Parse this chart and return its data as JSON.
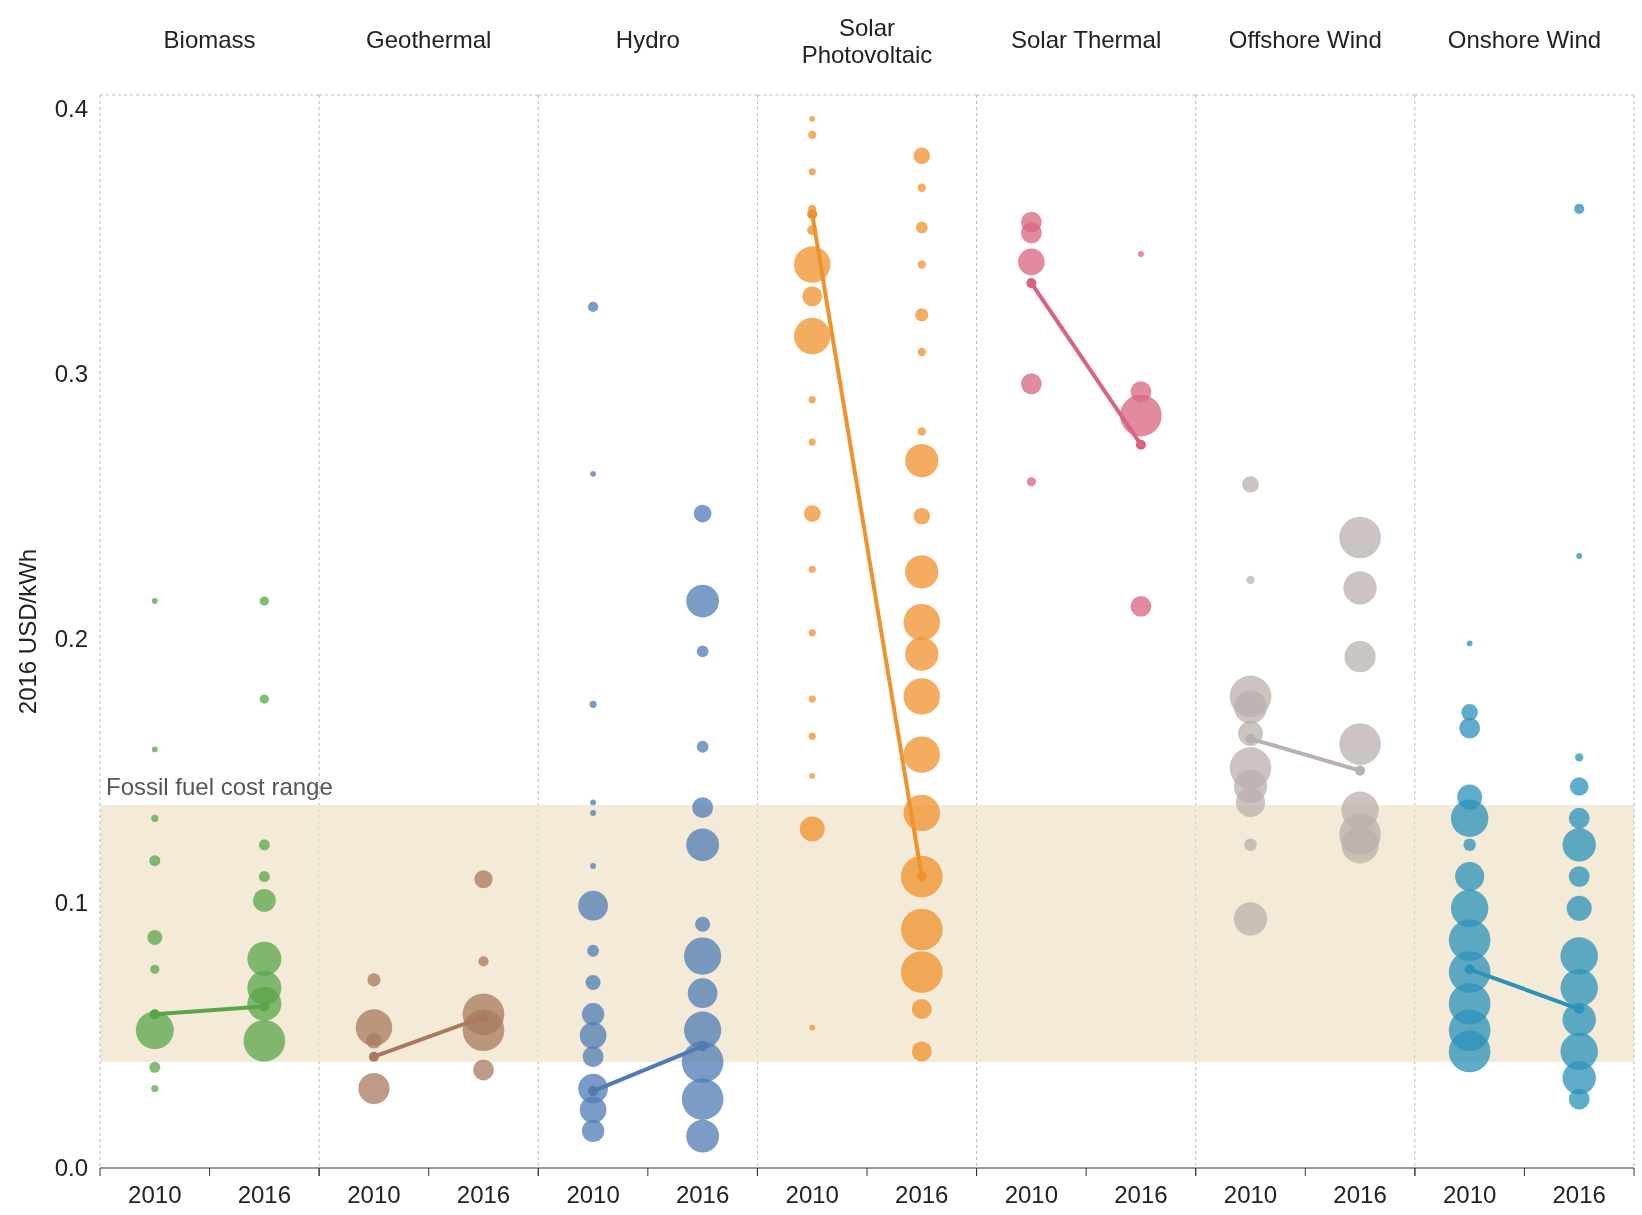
{
  "chart_data": [
    {
      "type": "bubble",
      "title": "Biomass",
      "ylabel": "2016 USD/kWh",
      "xlim": [
        "2007",
        "2019"
      ],
      "xticks": [
        "2010",
        "2016"
      ],
      "ylim": [
        0,
        0.405
      ],
      "yticks": [
        {
          "value": 0,
          "label": "0.0"
        },
        {
          "value": 0.1,
          "label": "0.1"
        },
        {
          "value": 0.2,
          "label": "0.2"
        },
        {
          "value": 0.3,
          "label": "0.3"
        },
        {
          "value": 0.4,
          "label": "0.4"
        }
      ],
      "marker": "circle",
      "bands": [
        {
          "axis": "y",
          "from": 0.04,
          "to": 0.137,
          "label": "Fossil fuel cost range",
          "color": "#f3ead8"
        }
      ],
      "series": [
        {
          "type": "bubble",
          "color": "#5aa54a",
          "x": [
            "2010",
            "2010",
            "2010",
            "2010",
            "2010",
            "2010",
            "2010",
            "2010",
            "2010",
            "2016",
            "2016",
            "2016",
            "2016",
            "2016",
            "2016",
            "2016",
            "2016",
            "2016"
          ],
          "values": [
            0.214,
            0.158,
            0.132,
            0.116,
            0.087,
            0.075,
            0.052,
            0.038,
            0.03,
            0.214,
            0.177,
            0.122,
            0.11,
            0.101,
            0.079,
            0.068,
            0.062,
            0.048
          ],
          "sizes": [
            0.02,
            0.02,
            0.03,
            0.07,
            0.13,
            0.05,
            0.83,
            0.07,
            0.03,
            0.05,
            0.05,
            0.07,
            0.07,
            0.3,
            0.67,
            0.67,
            0.67,
            1
          ]
        },
        {
          "type": "line",
          "color": "#5aa54a",
          "x": [
            "2010",
            "2016"
          ],
          "values": [
            0.058,
            0.061
          ]
        }
      ]
    },
    {
      "type": "bubble",
      "title": "Geothermal",
      "xlim": [
        "2007",
        "2019"
      ],
      "xticks": [
        "2010",
        "2016"
      ],
      "ylim": [
        0,
        0.405
      ],
      "tick_labels": "x",
      "marker": "circle",
      "bands": [
        {
          "axis": "y",
          "from": 0.04,
          "to": 0.137,
          "color": "#f3ead8"
        }
      ],
      "series": [
        {
          "type": "bubble",
          "color": "#a87a5f",
          "x": [
            "2010",
            "2010",
            "2010",
            "2010",
            "2016",
            "2016",
            "2016",
            "2016",
            "2016"
          ],
          "values": [
            0.071,
            0.053,
            0.048,
            0.03,
            0.109,
            0.078,
            0.058,
            0.052,
            0.037
          ],
          "sizes": [
            0.1,
            0.77,
            0.14,
            0.56,
            0.19,
            0.06,
            1,
            1,
            0.25
          ]
        },
        {
          "type": "line",
          "color": "#a87a5f",
          "x": [
            "2010",
            "2016"
          ],
          "values": [
            0.042,
            0.057
          ]
        }
      ]
    },
    {
      "type": "bubble",
      "title": "Hydro",
      "xlim": [
        "2007",
        "2019"
      ],
      "xticks": [
        "2010",
        "2016"
      ],
      "ylim": [
        0,
        0.405
      ],
      "tick_labels": "x",
      "marker": "circle",
      "bands": [
        {
          "axis": "y",
          "from": 0.04,
          "to": 0.137,
          "color": "#f3ead8"
        }
      ],
      "series": [
        {
          "type": "bubble",
          "color": "#4f7bb4",
          "x": [
            "2010",
            "2010",
            "2010",
            "2010",
            "2010",
            "2010",
            "2010",
            "2010",
            "2010",
            "2010",
            "2010",
            "2010",
            "2010",
            "2010",
            "2010",
            "2016",
            "2016",
            "2016",
            "2016",
            "2016",
            "2016",
            "2016",
            "2016",
            "2016",
            "2016",
            "2016",
            "2016",
            "2016"
          ],
          "values": [
            0.325,
            0.262,
            0.175,
            0.138,
            0.134,
            0.114,
            0.099,
            0.082,
            0.07,
            0.058,
            0.05,
            0.042,
            0.03,
            0.022,
            0.014,
            0.247,
            0.214,
            0.195,
            0.159,
            0.136,
            0.122,
            0.092,
            0.08,
            0.066,
            0.052,
            0.04,
            0.026,
            0.012
          ],
          "sizes": [
            0.06,
            0.02,
            0.03,
            0.02,
            0.02,
            0.02,
            0.51,
            0.08,
            0.13,
            0.29,
            0.41,
            0.25,
            0.51,
            0.41,
            0.29,
            0.18,
            0.62,
            0.08,
            0.08,
            0.25,
            0.62,
            0.13,
            0.8,
            0.51,
            0.8,
            1,
            1,
            0.62
          ]
        },
        {
          "type": "line",
          "color": "#4f7bb4",
          "x": [
            "2010",
            "2016"
          ],
          "values": [
            0.029,
            0.046
          ]
        }
      ]
    },
    {
      "type": "bubble",
      "title": "Solar Photovoltaic",
      "xlim": [
        "2007",
        "2019"
      ],
      "xticks": [
        "2010",
        "2016"
      ],
      "ylim": [
        0,
        0.405
      ],
      "tick_labels": "x",
      "marker": "circle",
      "bands": [
        {
          "axis": "y",
          "from": 0.04,
          "to": 0.137,
          "color": "#f3ead8"
        }
      ],
      "series": [
        {
          "type": "bubble",
          "color": "#f0922b",
          "x": [
            "2010",
            "2010",
            "2010",
            "2010",
            "2010",
            "2010",
            "2010",
            "2010",
            "2010",
            "2010",
            "2010",
            "2010",
            "2010",
            "2010",
            "2010",
            "2010",
            "2010",
            "2010",
            "2016",
            "2016",
            "2016",
            "2016",
            "2016",
            "2016",
            "2016",
            "2016",
            "2016",
            "2016",
            "2016",
            "2016",
            "2016",
            "2016",
            "2016",
            "2016",
            "2016",
            "2016",
            "2016",
            "2016"
          ],
          "values": [
            0.396,
            0.39,
            0.376,
            0.362,
            0.354,
            0.341,
            0.329,
            0.314,
            0.29,
            0.274,
            0.247,
            0.226,
            0.202,
            0.177,
            0.163,
            0.148,
            0.128,
            0.053,
            0.382,
            0.37,
            0.355,
            0.341,
            0.322,
            0.308,
            0.278,
            0.267,
            0.246,
            0.225,
            0.206,
            0.194,
            0.178,
            0.156,
            0.134,
            0.11,
            0.09,
            0.074,
            0.06,
            0.044
          ],
          "sizes": [
            0.02,
            0.04,
            0.03,
            0.04,
            0.06,
            0.77,
            0.23,
            0.77,
            0.03,
            0.03,
            0.16,
            0.03,
            0.03,
            0.03,
            0.03,
            0.02,
            0.36,
            0.02,
            0.16,
            0.04,
            0.08,
            0.04,
            0.1,
            0.04,
            0.04,
            0.64,
            0.16,
            0.64,
            0.77,
            0.64,
            0.77,
            0.77,
            0.77,
            1,
            1,
            1,
            0.23,
            0.23
          ]
        },
        {
          "type": "line",
          "color": "#f0922b",
          "x": [
            "2010",
            "2016"
          ],
          "values": [
            0.36,
            0.11
          ]
        }
      ]
    },
    {
      "type": "bubble",
      "title": "Solar Thermal",
      "xlim": [
        "2007",
        "2019"
      ],
      "xticks": [
        "2010",
        "2016"
      ],
      "ylim": [
        0,
        0.405
      ],
      "tick_labels": "x",
      "marker": "circle",
      "bands": [
        {
          "axis": "y",
          "from": 0.04,
          "to": 0.137,
          "color": "#f3ead8"
        }
      ],
      "series": [
        {
          "type": "bubble",
          "color": "#d9647e",
          "x": [
            "2010",
            "2010",
            "2010",
            "2010",
            "2010",
            "2016",
            "2016",
            "2016",
            "2016"
          ],
          "values": [
            0.357,
            0.353,
            0.342,
            0.296,
            0.259,
            0.345,
            0.293,
            0.284,
            0.212
          ],
          "sizes": [
            0.25,
            0.25,
            0.41,
            0.25,
            0.05,
            0.02,
            0.25,
            1,
            0.25
          ]
        },
        {
          "type": "line",
          "color": "#d9647e",
          "x": [
            "2010",
            "2016"
          ],
          "values": [
            0.334,
            0.273
          ]
        }
      ]
    },
    {
      "type": "bubble",
      "title": "Offshore Wind",
      "xlim": [
        "2007",
        "2019"
      ],
      "xticks": [
        "2010",
        "2016"
      ],
      "ylim": [
        0,
        0.405
      ],
      "tick_labels": "x",
      "marker": "circle",
      "bands": [
        {
          "axis": "y",
          "from": 0.04,
          "to": 0.137,
          "color": "#f3ead8"
        }
      ],
      "series": [
        {
          "type": "bubble",
          "color": "#bab0ac",
          "x": [
            "2010",
            "2010",
            "2010",
            "2010",
            "2010",
            "2010",
            "2010",
            "2010",
            "2010",
            "2010",
            "2016",
            "2016",
            "2016",
            "2016",
            "2016",
            "2016",
            "2016"
          ],
          "values": [
            0.258,
            0.222,
            0.178,
            0.174,
            0.164,
            0.151,
            0.144,
            0.138,
            0.122,
            0.094,
            0.238,
            0.219,
            0.193,
            0.16,
            0.135,
            0.126,
            0.122
          ],
          "sizes": [
            0.16,
            0.04,
            1,
            0.64,
            0.36,
            1,
            0.64,
            0.49,
            0.09,
            0.64,
            1,
            0.64,
            0.56,
            1,
            0.81,
            1,
            0.81
          ]
        },
        {
          "type": "line",
          "color": "#bab0ac",
          "x": [
            "2010",
            "2016"
          ],
          "values": [
            0.162,
            0.15
          ]
        }
      ]
    },
    {
      "type": "bubble",
      "title": "Onshore Wind",
      "xlim": [
        "2007",
        "2019"
      ],
      "xticks": [
        "2010",
        "2016"
      ],
      "ylim": [
        0,
        0.405
      ],
      "tick_labels": "x",
      "marker": "circle",
      "bands": [
        {
          "axis": "y",
          "from": 0.04,
          "to": 0.137,
          "color": "#f3ead8"
        }
      ],
      "series": [
        {
          "type": "bubble",
          "color": "#2b92b9",
          "x": [
            "2010",
            "2010",
            "2010",
            "2010",
            "2010",
            "2010",
            "2010",
            "2010",
            "2010",
            "2010",
            "2010",
            "2010",
            "2010",
            "2016",
            "2016",
            "2016",
            "2016",
            "2016",
            "2016",
            "2016",
            "2016",
            "2016",
            "2016",
            "2016",
            "2016",
            "2016",
            "2016"
          ],
          "values": [
            0.198,
            0.172,
            0.166,
            0.14,
            0.132,
            0.122,
            0.11,
            0.098,
            0.086,
            0.074,
            0.062,
            0.052,
            0.044,
            0.362,
            0.231,
            0.155,
            0.144,
            0.132,
            0.122,
            0.11,
            0.098,
            0.08,
            0.068,
            0.056,
            0.044,
            0.034,
            0.026
          ],
          "sizes": [
            0.02,
            0.16,
            0.25,
            0.36,
            0.81,
            0.09,
            0.49,
            0.81,
            1,
            1,
            1,
            1,
            1,
            0.06,
            0.02,
            0.04,
            0.2,
            0.25,
            0.64,
            0.25,
            0.36,
            0.81,
            0.81,
            0.64,
            0.81,
            0.64,
            0.25
          ]
        },
        {
          "type": "line",
          "color": "#2b92b9",
          "x": [
            "2010",
            "2016"
          ],
          "values": [
            0.075,
            0.06
          ]
        }
      ]
    }
  ]
}
